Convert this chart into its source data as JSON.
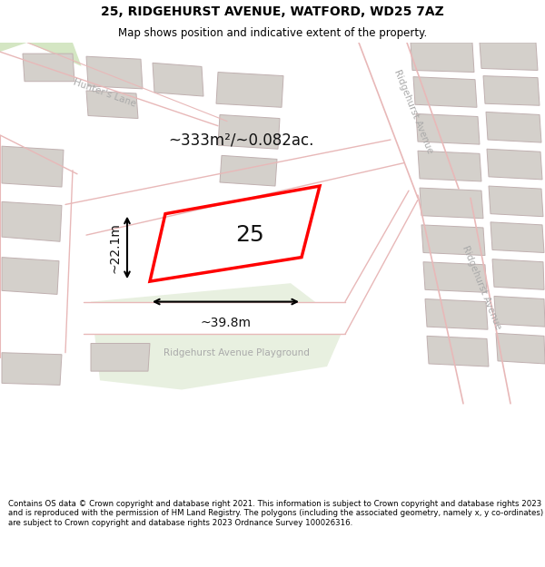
{
  "title": "25, RIDGEHURST AVENUE, WATFORD, WD25 7AZ",
  "subtitle": "Map shows position and indicative extent of the property.",
  "footer": "Contains OS data © Crown copyright and database right 2021. This information is subject to Crown copyright and database rights 2023 and is reproduced with the permission of HM Land Registry. The polygons (including the associated geometry, namely x, y co-ordinates) are subject to Crown copyright and database rights 2023 Ordnance Survey 100026316.",
  "area_label": "~333m²/~0.082ac.",
  "width_label": "~39.8m",
  "height_label": "~22.1m",
  "plot_number": "25",
  "bg_color": "#f0eeeb",
  "road_color": "#ffffff",
  "building_color": "#d4d0cb",
  "building_outline": "#c0b0b0",
  "highlight_color": "#ff0000",
  "green_area_color": "#d4e6c3",
  "light_green_color": "#e8f0e0",
  "road_line_color": "#e8b8b8",
  "street_label_color": "#aaaaaa",
  "title_color": "#000000",
  "footer_color": "#000000",
  "dim_color": "#000000",
  "title_fontsize": 10,
  "subtitle_fontsize": 8.5,
  "footer_fontsize": 6.2,
  "area_fontsize": 12,
  "plot_num_fontsize": 18,
  "dim_fontsize": 10,
  "street_fontsize": 7.5
}
